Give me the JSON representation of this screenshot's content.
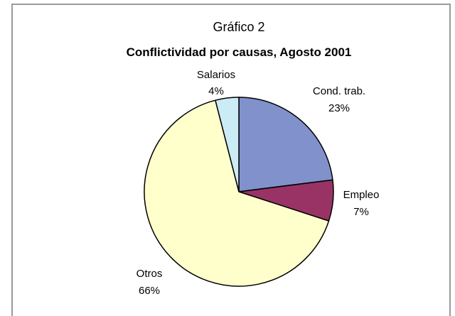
{
  "chart_data": {
    "type": "pie",
    "title": "Gráfico 2",
    "subtitle": "Conflictividad por causas, Agosto 2001",
    "categories": [
      "Cond. trab.",
      "Empleo",
      "Otros",
      "Salarios"
    ],
    "values": [
      23,
      7,
      66,
      4
    ],
    "value_labels": [
      "23%",
      "7%",
      "66%",
      "4%"
    ],
    "colors": [
      "#8091cc",
      "#993366",
      "#ffffcc",
      "#ccecf5"
    ],
    "start_angle_deg": 0,
    "direction": "clockwise",
    "legend": "none"
  }
}
